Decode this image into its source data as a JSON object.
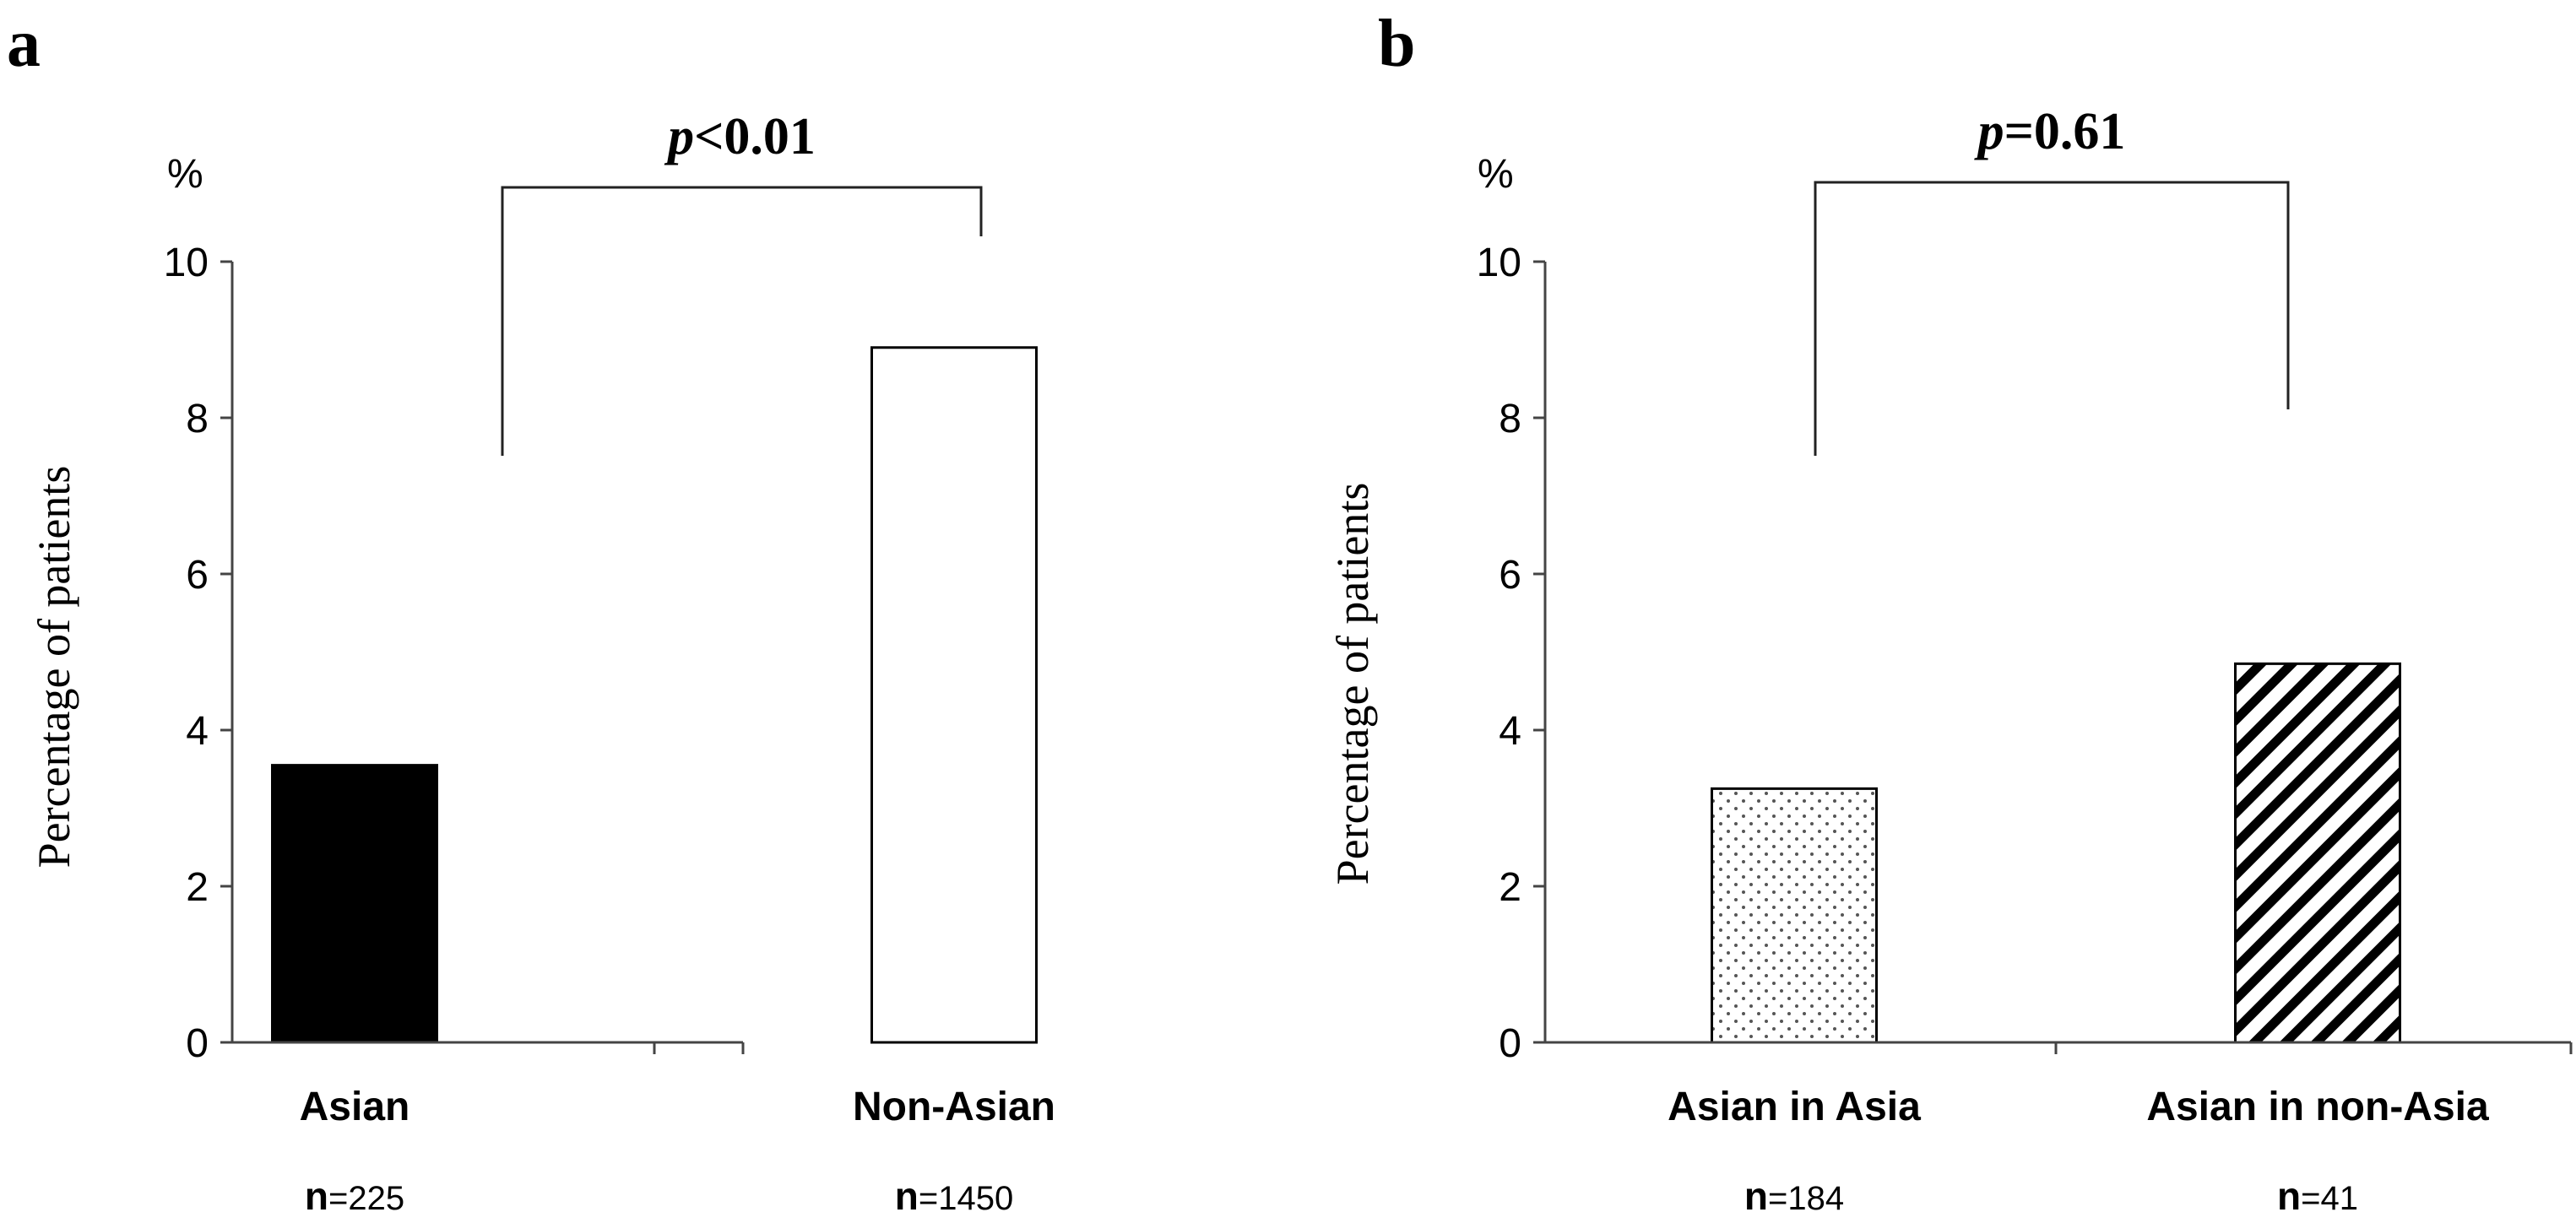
{
  "unit_label": "%",
  "chart_data": [
    {
      "type": "bar",
      "panel_label": "a",
      "ylabel": "Percentage  of patients",
      "ylim": [
        0,
        10
      ],
      "yticks": [
        "0",
        "2",
        "4",
        "6",
        "8",
        "10"
      ],
      "categories": [
        "Asian",
        "Non-Asian"
      ],
      "values": [
        3.55,
        8.9
      ],
      "bar_fills": [
        "solid-black",
        "white"
      ],
      "n_prefix": "n",
      "n_values": [
        "=225",
        "=1450"
      ],
      "comparison": {
        "p_symbol": "p",
        "p_text": "<0.01"
      },
      "grid": false
    },
    {
      "type": "bar",
      "panel_label": "b",
      "ylabel": "Percentage  of patients",
      "ylim": [
        0,
        10
      ],
      "yticks": [
        "0",
        "2",
        "4",
        "6",
        "8",
        "10"
      ],
      "categories": [
        "Asian in Asia",
        "Asian in non-Asia"
      ],
      "values": [
        3.25,
        4.85
      ],
      "bar_fills": [
        "dotted",
        "diagonal-hatch"
      ],
      "n_prefix": "n",
      "n_values": [
        "=184",
        "=41"
      ],
      "comparison": {
        "p_symbol": "p",
        "p_text": "=0.61"
      },
      "grid": false
    }
  ]
}
